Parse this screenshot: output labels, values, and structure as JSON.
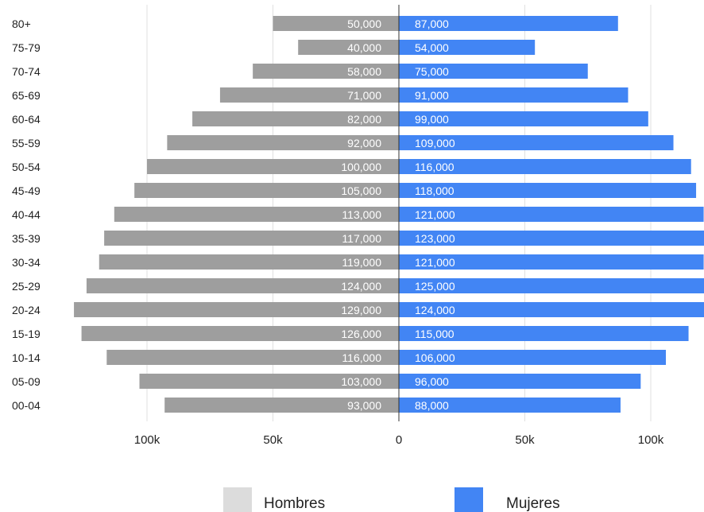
{
  "chart_data": {
    "type": "bar",
    "orientation": "horizontal",
    "layout": "population-pyramid",
    "categories": [
      "80+",
      "75-79",
      "70-74",
      "65-69",
      "60-64",
      "55-59",
      "50-54",
      "45-49",
      "40-44",
      "35-39",
      "30-34",
      "25-29",
      "20-24",
      "15-19",
      "10-14",
      "05-09",
      "00-04"
    ],
    "series": [
      {
        "name": "Hombres",
        "side": "left",
        "color": "#9e9e9e",
        "legend_color": "#dcdcdc",
        "values": [
          50000,
          40000,
          58000,
          71000,
          82000,
          92000,
          100000,
          105000,
          113000,
          117000,
          119000,
          124000,
          129000,
          126000,
          116000,
          103000,
          93000
        ],
        "value_labels": [
          "50,000",
          "40,000",
          "58,000",
          "71,000",
          "82,000",
          "92,000",
          "100,000",
          "105,000",
          "113,000",
          "117,000",
          "119,000",
          "124,000",
          "129,000",
          "126,000",
          "116,000",
          "103,000",
          "93,000"
        ]
      },
      {
        "name": "Mujeres",
        "side": "right",
        "color": "#4285f4",
        "legend_color": "#4285f4",
        "values": [
          87000,
          54000,
          75000,
          91000,
          99000,
          109000,
          116000,
          118000,
          121000,
          123000,
          121000,
          125000,
          124000,
          115000,
          106000,
          96000,
          88000
        ],
        "value_labels": [
          "87,000",
          "54,000",
          "75,000",
          "91,000",
          "99,000",
          "109,000",
          "116,000",
          "118,000",
          "121,000",
          "123,000",
          "121,000",
          "125,000",
          "124,000",
          "115,000",
          "106,000",
          "96,000",
          "88,000"
        ]
      }
    ],
    "x_ticks": [
      {
        "value": -100000,
        "label": "100k"
      },
      {
        "value": -50000,
        "label": "50k"
      },
      {
        "value": 0,
        "label": "0"
      },
      {
        "value": 50000,
        "label": "50k"
      },
      {
        "value": 100000,
        "label": "100k"
      }
    ],
    "xlim": [
      -130000,
      120000
    ],
    "grid": true,
    "legend_position": "bottom",
    "title": "",
    "xlabel": "",
    "ylabel": ""
  }
}
